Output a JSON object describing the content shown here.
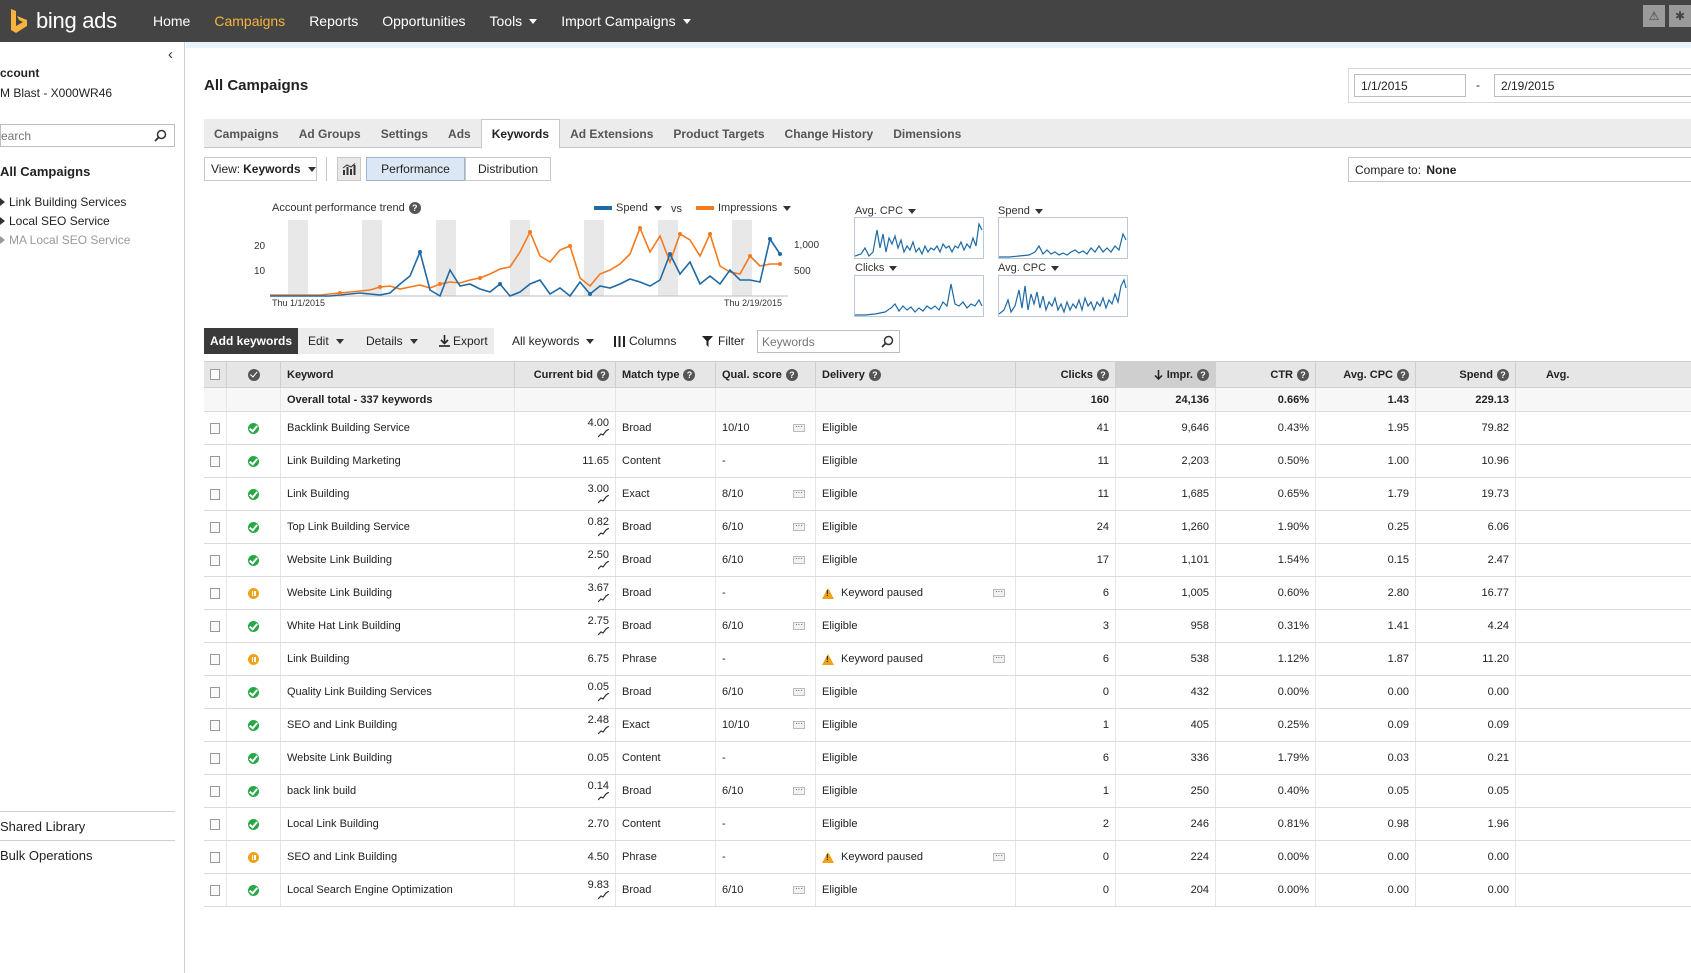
{
  "brand": {
    "logo_text": "bing ads",
    "logo_color": "#f7b33d"
  },
  "nav": {
    "items": [
      {
        "label": "Home",
        "active": false,
        "dropdown": false
      },
      {
        "label": "Campaigns",
        "active": true,
        "dropdown": false
      },
      {
        "label": "Reports",
        "active": false,
        "dropdown": false
      },
      {
        "label": "Opportunities",
        "active": false,
        "dropdown": false
      },
      {
        "label": "Tools",
        "active": false,
        "dropdown": true
      },
      {
        "label": "Import Campaigns",
        "active": false,
        "dropdown": true
      }
    ]
  },
  "sidebar": {
    "account_label": "ccount",
    "account_name": "M Blast - X000WR46",
    "search_placeholder": "earch",
    "all_campaigns": "All Campaigns",
    "campaigns": [
      {
        "label": "Link Building Services",
        "dim": false
      },
      {
        "label": "Local SEO Service",
        "dim": false
      },
      {
        "label": "MA Local SEO Service",
        "dim": true
      }
    ],
    "shared_library": "Shared Library",
    "bulk_operations": "Bulk Operations"
  },
  "header": {
    "title": "All Campaigns",
    "date_from": "1/1/2015",
    "date_separator": "-",
    "date_to": "2/19/2015"
  },
  "tabs": [
    "Campaigns",
    "Ad Groups",
    "Settings",
    "Ads",
    "Keywords",
    "Ad Extensions",
    "Product Targets",
    "Change History",
    "Dimensions"
  ],
  "active_tab": "Keywords",
  "view": {
    "label": "View:",
    "value": "Keywords"
  },
  "segments": {
    "performance": "Performance",
    "distribution": "Distribution"
  },
  "compare": {
    "label": "Compare to:",
    "value": "None"
  },
  "trend": {
    "title": "Account performance trend",
    "series1": "Spend",
    "series1_color": "#1f6aa5",
    "vs": "vs",
    "series2": "Impressions",
    "series2_color": "#f47a1f",
    "left_ticks": [
      "20",
      "10"
    ],
    "right_ticks": [
      "1,000",
      "500"
    ],
    "start_label": "Thu 1/1/2015",
    "end_label": "Thu 2/19/2015"
  },
  "mini_charts": [
    {
      "label": "Avg. CPC"
    },
    {
      "label": "Spend"
    },
    {
      "label": "Clicks"
    },
    {
      "label": "Avg. CPC"
    }
  ],
  "toolbar": {
    "add": "Add keywords",
    "edit": "Edit",
    "details": "Details",
    "export": "Export",
    "filter_scope": "All keywords",
    "columns": "Columns",
    "filter": "Filter",
    "search_placeholder": "Keywords"
  },
  "table": {
    "headers": {
      "keyword": "Keyword",
      "bid": "Current bid",
      "match": "Match type",
      "qual": "Qual. score",
      "delivery": "Delivery",
      "clicks": "Clicks",
      "impr": "Impr.",
      "ctr": "CTR",
      "cpc": "Avg. CPC",
      "spend": "Spend",
      "pos": "Avg."
    },
    "total": {
      "label": "Overall total - 337 keywords",
      "clicks": "160",
      "impr": "24,136",
      "ctr": "0.66%",
      "cpc": "1.43",
      "spend": "229.13"
    },
    "rows": [
      {
        "status": "active",
        "keyword": "Backlink Building Service",
        "bid": "4.00",
        "spark": true,
        "match": "Broad",
        "qual": "10/10",
        "qdots": true,
        "delivery": "Eligible",
        "warn": false,
        "clicks": "41",
        "impr": "9,646",
        "ctr": "0.43%",
        "cpc": "1.95",
        "spend": "79.82"
      },
      {
        "status": "active",
        "keyword": "Link Building Marketing",
        "bid": "11.65",
        "spark": false,
        "match": "Content",
        "qual": "-",
        "qdots": false,
        "delivery": "Eligible",
        "warn": false,
        "clicks": "11",
        "impr": "2,203",
        "ctr": "0.50%",
        "cpc": "1.00",
        "spend": "10.96"
      },
      {
        "status": "active",
        "keyword": "Link Building",
        "bid": "3.00",
        "spark": true,
        "match": "Exact",
        "qual": "8/10",
        "qdots": true,
        "delivery": "Eligible",
        "warn": false,
        "clicks": "11",
        "impr": "1,685",
        "ctr": "0.65%",
        "cpc": "1.79",
        "spend": "19.73"
      },
      {
        "status": "active",
        "keyword": "Top Link Building Service",
        "bid": "0.82",
        "spark": true,
        "match": "Broad",
        "qual": "6/10",
        "qdots": true,
        "delivery": "Eligible",
        "warn": false,
        "clicks": "24",
        "impr": "1,260",
        "ctr": "1.90%",
        "cpc": "0.25",
        "spend": "6.06"
      },
      {
        "status": "active",
        "keyword": "Website Link Building",
        "bid": "2.50",
        "spark": true,
        "match": "Broad",
        "qual": "6/10",
        "qdots": true,
        "delivery": "Eligible",
        "warn": false,
        "clicks": "17",
        "impr": "1,101",
        "ctr": "1.54%",
        "cpc": "0.15",
        "spend": "2.47"
      },
      {
        "status": "paused",
        "keyword": "Website Link Building",
        "bid": "3.67",
        "spark": true,
        "match": "Broad",
        "qual": "-",
        "qdots": false,
        "delivery": "Keyword paused",
        "warn": true,
        "clicks": "6",
        "impr": "1,005",
        "ctr": "0.60%",
        "cpc": "2.80",
        "spend": "16.77"
      },
      {
        "status": "active",
        "keyword": "White Hat Link Building",
        "bid": "2.75",
        "spark": true,
        "match": "Broad",
        "qual": "6/10",
        "qdots": true,
        "delivery": "Eligible",
        "warn": false,
        "clicks": "3",
        "impr": "958",
        "ctr": "0.31%",
        "cpc": "1.41",
        "spend": "4.24"
      },
      {
        "status": "paused",
        "keyword": "Link Building",
        "bid": "6.75",
        "spark": false,
        "match": "Phrase",
        "qual": "-",
        "qdots": false,
        "delivery": "Keyword paused",
        "warn": true,
        "clicks": "6",
        "impr": "538",
        "ctr": "1.12%",
        "cpc": "1.87",
        "spend": "11.20"
      },
      {
        "status": "active",
        "keyword": "Quality Link Building Services",
        "bid": "0.05",
        "spark": true,
        "match": "Broad",
        "qual": "6/10",
        "qdots": true,
        "delivery": "Eligible",
        "warn": false,
        "clicks": "0",
        "impr": "432",
        "ctr": "0.00%",
        "cpc": "0.00",
        "spend": "0.00"
      },
      {
        "status": "active",
        "keyword": "SEO and Link Building",
        "bid": "2.48",
        "spark": true,
        "match": "Exact",
        "qual": "10/10",
        "qdots": true,
        "delivery": "Eligible",
        "warn": false,
        "clicks": "1",
        "impr": "405",
        "ctr": "0.25%",
        "cpc": "0.09",
        "spend": "0.09"
      },
      {
        "status": "active",
        "keyword": "Website Link Building",
        "bid": "0.05",
        "spark": false,
        "match": "Content",
        "qual": "-",
        "qdots": false,
        "delivery": "Eligible",
        "warn": false,
        "clicks": "6",
        "impr": "336",
        "ctr": "1.79%",
        "cpc": "0.03",
        "spend": "0.21"
      },
      {
        "status": "active",
        "keyword": "back link build",
        "bid": "0.14",
        "spark": true,
        "match": "Broad",
        "qual": "6/10",
        "qdots": true,
        "delivery": "Eligible",
        "warn": false,
        "clicks": "1",
        "impr": "250",
        "ctr": "0.40%",
        "cpc": "0.05",
        "spend": "0.05"
      },
      {
        "status": "active",
        "keyword": "Local Link Building",
        "bid": "2.70",
        "spark": false,
        "match": "Content",
        "qual": "-",
        "qdots": false,
        "delivery": "Eligible",
        "warn": false,
        "clicks": "2",
        "impr": "246",
        "ctr": "0.81%",
        "cpc": "0.98",
        "spend": "1.96"
      },
      {
        "status": "paused",
        "keyword": "SEO and Link Building",
        "bid": "4.50",
        "spark": false,
        "match": "Phrase",
        "qual": "-",
        "qdots": false,
        "delivery": "Keyword paused",
        "warn": true,
        "clicks": "0",
        "impr": "224",
        "ctr": "0.00%",
        "cpc": "0.00",
        "spend": "0.00"
      },
      {
        "status": "active",
        "keyword": "Local Search Engine Optimization",
        "bid": "9.83",
        "spark": true,
        "match": "Broad",
        "qual": "6/10",
        "qdots": true,
        "delivery": "Eligible",
        "warn": false,
        "clicks": "0",
        "impr": "204",
        "ctr": "0.00%",
        "cpc": "0.00",
        "spend": "0.00"
      }
    ]
  }
}
